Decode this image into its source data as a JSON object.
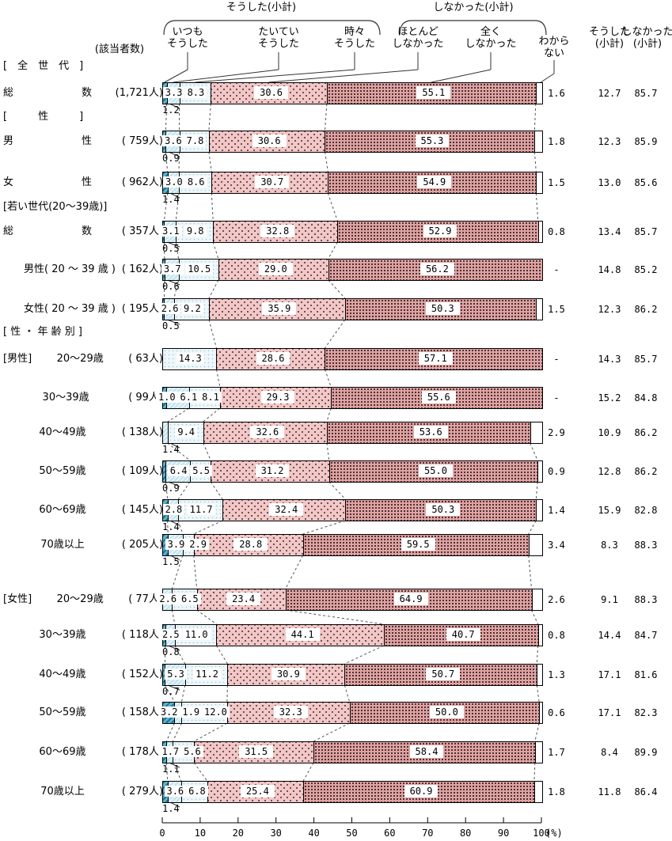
{
  "chart_data": {
    "type": "bar",
    "orientation": "horizontal-stacked",
    "title": "",
    "unit": "(%)",
    "x_ticks": [
      0,
      10,
      20,
      30,
      40,
      50,
      60,
      70,
      80,
      90,
      100
    ],
    "xlim": [
      0,
      100
    ],
    "respondents_header": "(該当者数)",
    "bracket_labels": {
      "did": "そうした(小計)",
      "didnt": "しなかった(小計)"
    },
    "legend": [
      [
        "いつも",
        "そうした"
      ],
      [
        "たいてい",
        "そうした"
      ],
      [
        "時々",
        "そうした"
      ],
      [
        "ほとんど",
        "しなかった"
      ],
      [
        "全く",
        "しなかった"
      ]
    ],
    "right_headers": {
      "unknown": [
        "わから",
        "ない"
      ],
      "did": [
        "そうした",
        "(小計)"
      ],
      "didnt": [
        "しなかった",
        "(小計)"
      ]
    },
    "colors": {
      "always": "#2f89a8",
      "usually": "#d4ecf5",
      "sometimes": "#eef7fb",
      "hardly": "#f4c6c6",
      "never": "#dfa3a3",
      "unknown": "#ffffff"
    },
    "sections": [
      "[　全　世　代　]",
      "[　　　性　　　]",
      "[若い世代(20～39歳)]",
      "[ 性 ・ 年 齢 別 ]"
    ],
    "rows": [
      {
        "prefix": "",
        "label": "総数",
        "justify": true,
        "n": "(1,721人)",
        "values": [
          1.2,
          3.3,
          8.3,
          30.6,
          55.1,
          1.6
        ],
        "seg_labels": [
          null,
          "3.3",
          "8.3",
          "30.6",
          "55.1"
        ],
        "below_label": "1.2",
        "unknown": "1.6",
        "did": "12.7",
        "didnt": "85.7"
      },
      {
        "prefix": "",
        "label": "男性",
        "justify": true,
        "n": "( 759人)",
        "values": [
          0.9,
          3.6,
          7.8,
          30.6,
          55.3,
          1.8
        ],
        "seg_labels": [
          null,
          "3.6",
          "7.8",
          "30.6",
          "55.3"
        ],
        "below_label": "0.9",
        "unknown": "1.8",
        "did": "12.3",
        "didnt": "85.9"
      },
      {
        "prefix": "",
        "label": "女性",
        "justify": true,
        "n": "( 962人)",
        "values": [
          1.4,
          3.0,
          8.6,
          30.7,
          54.9,
          1.5
        ],
        "seg_labels": [
          null,
          "3.0",
          "8.6",
          "30.7",
          "54.9"
        ],
        "below_label": "1.4",
        "unknown": "1.5",
        "did": "13.0",
        "didnt": "85.6"
      },
      {
        "prefix": "",
        "label": "総数",
        "justify": true,
        "n": "( 357人)",
        "values": [
          0.5,
          3.1,
          9.8,
          32.8,
          52.9,
          0.8
        ],
        "seg_labels": [
          null,
          "3.1",
          "9.8",
          "32.8",
          "52.9"
        ],
        "below_label": "0.5",
        "unknown": "0.8",
        "did": "13.4",
        "didnt": "85.7"
      },
      {
        "prefix": "",
        "label": "男性( 20 ～ 39 歳 )",
        "justify": false,
        "n": "( 162人)",
        "values": [
          0.6,
          3.7,
          10.5,
          29.0,
          56.2,
          0
        ],
        "seg_labels": [
          null,
          "3.7",
          "10.5",
          "29.0",
          "56.2"
        ],
        "below_label": "0.6",
        "unknown": "-",
        "did": "14.8",
        "didnt": "85.2"
      },
      {
        "prefix": "",
        "label": "女性( 20 ～ 39 歳 )",
        "justify": false,
        "n": "( 195人)",
        "values": [
          0.5,
          2.6,
          9.2,
          35.9,
          50.3,
          1.5
        ],
        "seg_labels": [
          null,
          "2.6",
          "9.2",
          "35.9",
          "50.3"
        ],
        "below_label": "0.5",
        "unknown": "1.5",
        "did": "12.3",
        "didnt": "86.2"
      },
      {
        "prefix": "[男性]",
        "label": "20～29歳",
        "justify": false,
        "n": "(  63人)",
        "values": [
          0,
          0,
          14.3,
          28.6,
          57.1,
          0
        ],
        "seg_labels": [
          null,
          null,
          "14.3",
          "28.6",
          "57.1"
        ],
        "below_label": null,
        "unknown": "-",
        "did": "14.3",
        "didnt": "85.7"
      },
      {
        "prefix": "",
        "label": "30～39歳",
        "justify": false,
        "n": "(  99人)",
        "values": [
          1.0,
          6.1,
          8.1,
          29.3,
          55.6,
          0
        ],
        "seg_labels": [
          "1.0",
          "6.1",
          "8.1",
          "29.3",
          "55.6"
        ],
        "below_label": null,
        "unknown": "-",
        "did": "15.2",
        "didnt": "84.8"
      },
      {
        "prefix": "",
        "label": "40～49歳",
        "justify": false,
        "n": "( 138人)",
        "values": [
          0,
          1.4,
          9.4,
          32.6,
          53.6,
          2.9
        ],
        "seg_labels": [
          null,
          null,
          "9.4",
          "32.6",
          "53.6"
        ],
        "below_label": "1.4",
        "unknown": "2.9",
        "did": "10.9",
        "didnt": "86.2"
      },
      {
        "prefix": "",
        "label": "50～59歳",
        "justify": false,
        "n": "( 109人)",
        "values": [
          0.9,
          6.4,
          5.5,
          31.2,
          55.0,
          0.9
        ],
        "seg_labels": [
          null,
          "6.4",
          "5.5",
          "31.2",
          "55.0"
        ],
        "below_label": "0.9",
        "unknown": "0.9",
        "did": "12.8",
        "didnt": "86.2"
      },
      {
        "prefix": "",
        "label": "60～69歳",
        "justify": false,
        "n": "( 145人)",
        "values": [
          1.4,
          2.8,
          11.7,
          32.4,
          50.3,
          1.4
        ],
        "seg_labels": [
          null,
          "2.8",
          "11.7",
          "32.4",
          "50.3"
        ],
        "below_label": "1.4",
        "unknown": "1.4",
        "did": "15.9",
        "didnt": "82.8"
      },
      {
        "prefix": "",
        "label": "70歳以上",
        "justify": false,
        "n": "( 205人)",
        "values": [
          1.5,
          3.9,
          2.9,
          28.8,
          59.5,
          3.4
        ],
        "seg_labels": [
          null,
          "3.9",
          "2.9",
          "28.8",
          "59.5"
        ],
        "below_label": "1.5",
        "unknown": "3.4",
        "did": "8.3",
        "didnt": "88.3"
      },
      {
        "prefix": "[女性]",
        "label": "20～29歳",
        "justify": false,
        "n": "(  77人)",
        "values": [
          0,
          2.6,
          6.5,
          23.4,
          64.9,
          2.6
        ],
        "seg_labels": [
          null,
          "2.6",
          "6.5",
          "23.4",
          "64.9"
        ],
        "below_label": null,
        "unknown": "2.6",
        "did": "9.1",
        "didnt": "88.3"
      },
      {
        "prefix": "",
        "label": "30～39歳",
        "justify": false,
        "n": "( 118人)",
        "values": [
          0.8,
          2.5,
          11.0,
          44.1,
          40.7,
          0.8
        ],
        "seg_labels": [
          null,
          "2.5",
          "11.0",
          "44.1",
          "40.7"
        ],
        "below_label": "0.8",
        "unknown": "0.8",
        "did": "14.4",
        "didnt": "84.7"
      },
      {
        "prefix": "",
        "label": "40～49歳",
        "justify": false,
        "n": "( 152人)",
        "values": [
          0.7,
          5.3,
          11.2,
          30.9,
          50.7,
          1.3
        ],
        "seg_labels": [
          null,
          "5.3",
          "11.2",
          "30.9",
          "50.7"
        ],
        "below_label": "0.7",
        "unknown": "1.3",
        "did": "17.1",
        "didnt": "81.6"
      },
      {
        "prefix": "",
        "label": "50～59歳",
        "justify": false,
        "n": "( 158人)",
        "values": [
          3.2,
          1.9,
          12.0,
          32.3,
          50.0,
          0.6
        ],
        "seg_labels": [
          "3.2",
          "1.9",
          "12.0",
          "32.3",
          "50.0"
        ],
        "below_label": null,
        "unknown": "0.6",
        "did": "17.1",
        "didnt": "82.3"
      },
      {
        "prefix": "",
        "label": "60～69歳",
        "justify": false,
        "n": "( 178人)",
        "values": [
          1.1,
          1.7,
          5.6,
          31.5,
          58.4,
          1.7
        ],
        "seg_labels": [
          null,
          "1.7",
          "5.6",
          "31.5",
          "58.4"
        ],
        "below_label": "1.1",
        "unknown": "1.7",
        "did": "8.4",
        "didnt": "89.9"
      },
      {
        "prefix": "",
        "label": "70歳以上",
        "justify": false,
        "n": "( 279人)",
        "values": [
          1.4,
          3.6,
          6.8,
          25.4,
          60.9,
          1.8
        ],
        "seg_labels": [
          null,
          "3.6",
          "6.8",
          "25.4",
          "60.9"
        ],
        "below_label": "1.4",
        "unknown": "1.8",
        "did": "11.8",
        "didnt": "86.4"
      }
    ]
  }
}
